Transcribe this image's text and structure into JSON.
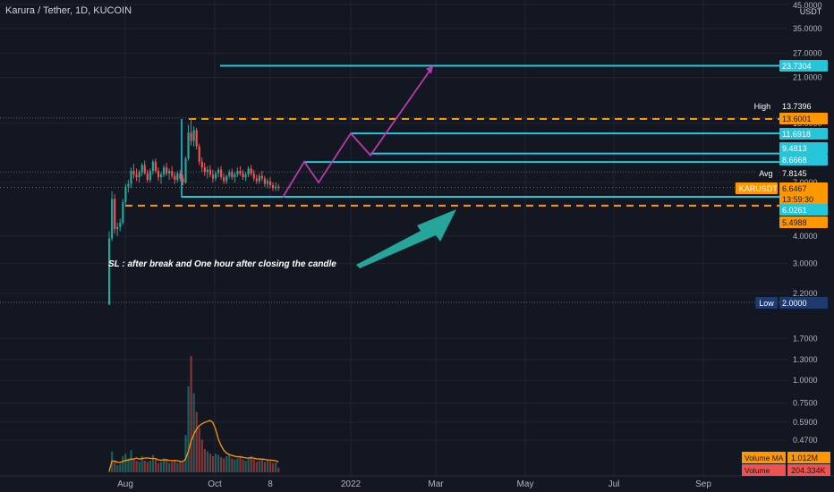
{
  "header": {
    "title": "Karura / Tether, 1D, KUCOIN"
  },
  "annotation": {
    "text": "SL : after break and One hour after closing the candle"
  },
  "colors": {
    "background": "#131722",
    "cyan": "#26c6da",
    "orange": "#ff9800",
    "purple": "#b83aa8",
    "teal_arrow": "#26a69a",
    "up": "#26a69a",
    "down": "#ef5350",
    "ma": "#ff9800",
    "navy_badge": "#1e3a6e"
  },
  "chart_data": {
    "type": "candlestick",
    "title": "Karura / Tether, 1D, KUCOIN",
    "y_axis": {
      "scale": "log",
      "currency": "USDT",
      "tick_labels": [
        "45.0000",
        "35.0000",
        "27.0000",
        "21.0000",
        "13.0000",
        "7.0000",
        "4.0000",
        "3.0000",
        "2.2000",
        "1.7000",
        "1.3000",
        "1.0000",
        "0.7500",
        "0.5900",
        "0.4700"
      ]
    },
    "x_axis": {
      "tick_labels": [
        "Aug",
        "Oct",
        "8",
        "2022",
        "Mar",
        "May",
        "Jul",
        "Sep"
      ]
    },
    "price_badges": [
      {
        "label": "",
        "value": "23.7304",
        "color": "#26c6da"
      },
      {
        "label": "High",
        "value": "13.7396",
        "color": "#131722"
      },
      {
        "label": "",
        "value": "13.6001",
        "color": "#ff9800"
      },
      {
        "label": "",
        "value": "11.6918",
        "color": "#26c6da"
      },
      {
        "label": "",
        "value": "9.4813",
        "color": "#26c6da"
      },
      {
        "label": "",
        "value": "8.6668",
        "color": "#26c6da"
      },
      {
        "label": "Avg",
        "value": "7.8145",
        "color": "#131722"
      },
      {
        "label": "KARUSDT",
        "value": "6.6467",
        "color": "#ff9800"
      },
      {
        "label": "",
        "value": "13:59:30",
        "color": "#ff9800"
      },
      {
        "label": "",
        "value": "6.0261",
        "color": "#26c6da"
      },
      {
        "label": "",
        "value": "5.4988",
        "color": "#ff9800"
      },
      {
        "label": "Low",
        "value": "2.0000",
        "color": "#1e3a6e"
      }
    ],
    "volume_badges": [
      {
        "label": "Volume MA",
        "value": "1.012M"
      },
      {
        "label": "Volume",
        "value": "204.334K"
      }
    ],
    "levels_cyan": [
      23.7304,
      11.6918,
      9.4813,
      8.6668,
      6.0261
    ],
    "levels_orange": [
      13.6001,
      5.4988
    ],
    "projection_path": [
      6.0,
      8.7,
      7.0,
      11.7,
      9.3,
      23.7
    ],
    "candles": [
      [
        1.95,
        4.2,
        1.95,
        3.9
      ],
      [
        3.9,
        6.4,
        3.8,
        5.9
      ],
      [
        5.9,
        6.2,
        4.1,
        4.3
      ],
      [
        4.3,
        4.6,
        4.0,
        4.4
      ],
      [
        4.4,
        4.8,
        4.2,
        4.6
      ],
      [
        4.6,
        5.9,
        4.5,
        5.7
      ],
      [
        5.7,
        6.9,
        5.5,
        6.7
      ],
      [
        6.7,
        7.2,
        6.3,
        6.9
      ],
      [
        6.9,
        8.2,
        6.6,
        7.9
      ],
      [
        7.9,
        8.5,
        7.3,
        7.6
      ],
      [
        7.6,
        8.1,
        7.1,
        7.4
      ],
      [
        7.4,
        8.0,
        7.0,
        7.8
      ],
      [
        7.8,
        8.6,
        7.5,
        8.4
      ],
      [
        8.4,
        8.8,
        7.6,
        7.7
      ],
      [
        7.7,
        8.0,
        7.0,
        7.2
      ],
      [
        7.2,
        8.1,
        7.0,
        7.9
      ],
      [
        7.9,
        8.9,
        7.6,
        8.7
      ],
      [
        8.7,
        9.0,
        7.7,
        7.9
      ],
      [
        7.9,
        8.2,
        7.1,
        7.4
      ],
      [
        7.4,
        7.8,
        6.9,
        7.6
      ],
      [
        7.6,
        8.4,
        7.4,
        8.2
      ],
      [
        8.2,
        8.6,
        7.5,
        7.7
      ],
      [
        7.7,
        8.1,
        7.2,
        7.9
      ],
      [
        7.9,
        8.3,
        7.3,
        7.5
      ],
      [
        7.5,
        7.8,
        6.9,
        7.2
      ],
      [
        7.2,
        7.9,
        7.0,
        7.7
      ],
      [
        7.7,
        8.0,
        7.1,
        7.3
      ],
      [
        7.3,
        7.6,
        6.8,
        7.0
      ],
      [
        7.0,
        9.2,
        6.9,
        9.0
      ],
      [
        9.0,
        12.8,
        8.8,
        11.8
      ],
      [
        11.8,
        13.74,
        10.3,
        10.8
      ],
      [
        10.8,
        12.6,
        10.2,
        12.1
      ],
      [
        12.1,
        12.4,
        9.9,
        10.2
      ],
      [
        10.2,
        10.5,
        8.4,
        8.7
      ],
      [
        8.7,
        9.1,
        7.8,
        8.2
      ],
      [
        8.2,
        8.6,
        7.5,
        7.8
      ],
      [
        7.8,
        8.3,
        7.3,
        8.0
      ],
      [
        8.0,
        8.4,
        7.4,
        7.6
      ],
      [
        7.6,
        8.0,
        7.0,
        7.3
      ],
      [
        7.3,
        7.9,
        7.1,
        7.7
      ],
      [
        7.7,
        8.2,
        7.4,
        8.0
      ],
      [
        8.0,
        8.3,
        7.2,
        7.4
      ],
      [
        7.4,
        7.7,
        6.9,
        7.1
      ],
      [
        7.1,
        7.6,
        6.9,
        7.5
      ],
      [
        7.5,
        8.0,
        7.3,
        7.8
      ],
      [
        7.8,
        8.1,
        7.2,
        7.4
      ],
      [
        7.4,
        7.8,
        7.0,
        7.6
      ],
      [
        7.6,
        8.2,
        7.4,
        7.9
      ],
      [
        7.9,
        8.3,
        7.5,
        7.7
      ],
      [
        7.7,
        8.0,
        7.2,
        7.4
      ],
      [
        7.4,
        7.8,
        7.1,
        7.6
      ],
      [
        7.6,
        8.3,
        7.4,
        8.1
      ],
      [
        8.1,
        8.4,
        7.5,
        7.7
      ],
      [
        7.7,
        8.0,
        7.1,
        7.3
      ],
      [
        7.3,
        7.6,
        6.9,
        7.1
      ],
      [
        7.1,
        7.7,
        6.9,
        7.5
      ],
      [
        7.5,
        7.9,
        7.1,
        7.3
      ],
      [
        7.3,
        7.5,
        6.7,
        6.9
      ],
      [
        6.9,
        7.3,
        6.6,
        7.1
      ],
      [
        7.1,
        7.4,
        6.6,
        6.8
      ],
      [
        6.8,
        7.0,
        6.4,
        6.6
      ],
      [
        6.6,
        7.0,
        6.4,
        6.7
      ],
      [
        6.7,
        6.9,
        6.4,
        6.65
      ]
    ],
    "volume": [
      0.05,
      0.9,
      0.5,
      0.3,
      0.35,
      0.7,
      0.8,
      0.6,
      0.95,
      0.55,
      0.5,
      0.45,
      0.7,
      0.5,
      0.45,
      0.5,
      0.75,
      0.55,
      0.4,
      0.45,
      0.6,
      0.5,
      0.4,
      0.45,
      0.5,
      0.4,
      0.45,
      0.4,
      1.6,
      3.7,
      5.0,
      3.4,
      2.6,
      1.9,
      1.4,
      1.0,
      0.9,
      0.8,
      0.7,
      0.8,
      0.75,
      0.65,
      0.6,
      0.7,
      0.75,
      0.6,
      0.55,
      0.6,
      0.7,
      0.55,
      0.5,
      0.6,
      0.7,
      0.55,
      0.45,
      0.5,
      0.55,
      0.45,
      0.5,
      0.45,
      0.4,
      0.42,
      0.2
    ]
  }
}
